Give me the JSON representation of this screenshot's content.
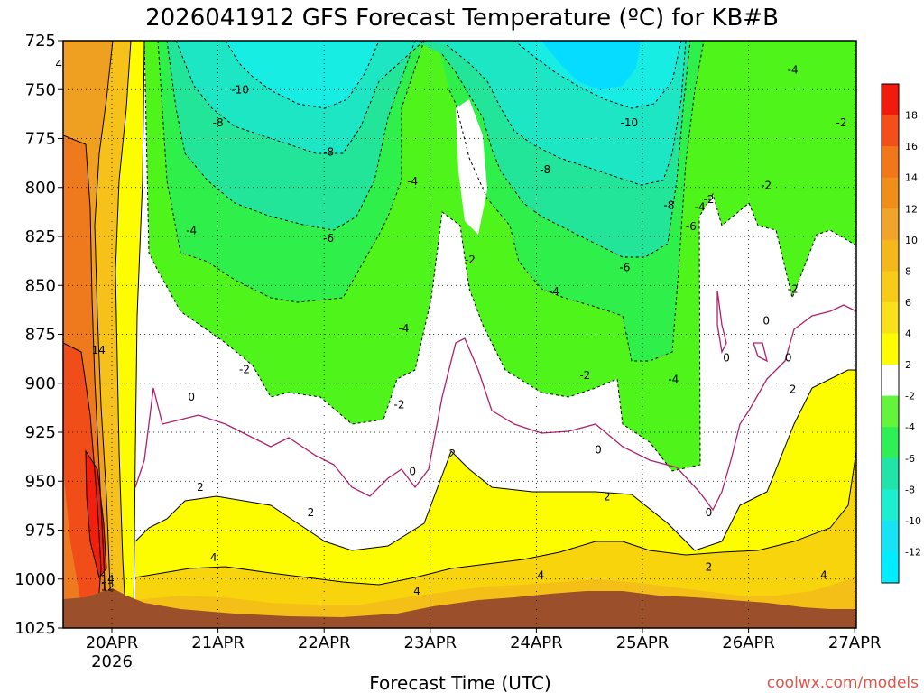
{
  "chart_data": {
    "type": "heatmap",
    "title": "2026041912 GFS Forecast Temperature (ºC) for KB#B",
    "xlabel": "Forecast Time (UTC)",
    "ylabel": "",
    "y_scale": "pressure (inverted)",
    "ylim": [
      1025,
      725
    ],
    "y_ticks": [
      "725",
      "750",
      "775",
      "800",
      "825",
      "850",
      "875",
      "900",
      "925",
      "950",
      "975",
      "1000",
      "1025"
    ],
    "x_ticks": [
      "20APR",
      "21APR",
      "22APR",
      "23APR",
      "24APR",
      "25APR",
      "26APR",
      "27APR"
    ],
    "x_ticks_sub": [
      "2026",
      "",
      "",
      "",
      "",
      "",
      "",
      ""
    ],
    "grid": true,
    "colorbar": {
      "position": "right",
      "labels": [
        "18",
        "16",
        "14",
        "12",
        "10",
        "8",
        "6",
        "4",
        "2",
        "-2",
        "-4",
        "-6",
        "-8",
        "-10",
        "-12"
      ],
      "colors": [
        "#f21a0d",
        "#f24f1a",
        "#f2771a",
        "#ef8f1a",
        "#f0a52a",
        "#f4b81c",
        "#f7cb17",
        "#f8e01a",
        "#fdfd00",
        "#ffffff",
        "#63f53a",
        "#2fef56",
        "#20e4a8",
        "#1ceed0",
        "#16e4f4",
        "#00ecff"
      ]
    },
    "contour_labels": [
      {
        "value": "4",
        "x_date": "19APR12Z",
        "p": 737
      },
      {
        "value": "-10",
        "x_date": "21APR05Z",
        "p": 750
      },
      {
        "value": "-8",
        "x_date": "21APR00Z",
        "p": 767
      },
      {
        "value": "-8",
        "x_date": "22APR01Z",
        "p": 782
      },
      {
        "value": "-4",
        "x_date": "22APR20Z",
        "p": 797
      },
      {
        "value": "-6",
        "x_date": "22APR01Z",
        "p": 826
      },
      {
        "value": "-4",
        "x_date": "20APR18Z",
        "p": 822
      },
      {
        "value": "-2",
        "x_date": "21APR06Z",
        "p": 893
      },
      {
        "value": "-2",
        "x_date": "23APR09Z",
        "p": 837
      },
      {
        "value": "-4",
        "x_date": "22APR18Z",
        "p": 872
      },
      {
        "value": "-2",
        "x_date": "22APR17Z",
        "p": 911
      },
      {
        "value": "0",
        "x_date": "20APR18Z",
        "p": 907
      },
      {
        "value": "0",
        "x_date": "22APR20Z",
        "p": 945
      },
      {
        "value": "2",
        "x_date": "23APR05Z",
        "p": 936
      },
      {
        "value": "2",
        "x_date": "20APR20Z",
        "p": 953
      },
      {
        "value": "2",
        "x_date": "21APR21Z",
        "p": 966
      },
      {
        "value": "4",
        "x_date": "20APR23Z",
        "p": 989
      },
      {
        "value": "14",
        "x_date": "19APR21Z",
        "p": 883
      },
      {
        "value": "14",
        "x_date": "19APR23Z",
        "p": 1000
      },
      {
        "value": "12",
        "x_date": "19APR23Z",
        "p": 1004
      },
      {
        "value": "-8",
        "x_date": "24APR02Z",
        "p": 791
      },
      {
        "value": "-10",
        "x_date": "24APR21Z",
        "p": 767
      },
      {
        "value": "-4",
        "x_date": "24APR04Z",
        "p": 853
      },
      {
        "value": "-2",
        "x_date": "24APR11Z",
        "p": 896
      },
      {
        "value": "0",
        "x_date": "24APR14Z",
        "p": 934
      },
      {
        "value": "2",
        "x_date": "24APR16Z",
        "p": 958
      },
      {
        "value": "4",
        "x_date": "24APR01Z",
        "p": 998
      },
      {
        "value": "4",
        "x_date": "22APR21Z",
        "p": 1006
      },
      {
        "value": "-6",
        "x_date": "24APR20Z",
        "p": 841
      },
      {
        "value": "-8",
        "x_date": "25APR06Z",
        "p": 809
      },
      {
        "value": "-6",
        "x_date": "25APR11Z",
        "p": 820
      },
      {
        "value": "-4",
        "x_date": "25APR13Z",
        "p": 810
      },
      {
        "value": "-2",
        "x_date": "25APR15Z",
        "p": 806
      },
      {
        "value": "-4",
        "x_date": "25APR07Z",
        "p": 898
      },
      {
        "value": "-4",
        "x_date": "26APR10Z",
        "p": 740
      },
      {
        "value": "-2",
        "x_date": "26APR21Z",
        "p": 767
      },
      {
        "value": "-2",
        "x_date": "26APR04Z",
        "p": 799
      },
      {
        "value": "-2",
        "x_date": "26APR10Z",
        "p": 852
      },
      {
        "value": "0",
        "x_date": "26APR04Z",
        "p": 868
      },
      {
        "value": "0",
        "x_date": "25APR19Z",
        "p": 887
      },
      {
        "value": "0",
        "x_date": "26APR09Z",
        "p": 887
      },
      {
        "value": "0",
        "x_date": "25APR15Z",
        "p": 966
      },
      {
        "value": "2",
        "x_date": "25APR15Z",
        "p": 994
      },
      {
        "value": "2",
        "x_date": "26APR10Z",
        "p": 903
      },
      {
        "value": "4",
        "x_date": "26APR17Z",
        "p": 998
      }
    ]
  },
  "watermark": "coolwx.com/models"
}
